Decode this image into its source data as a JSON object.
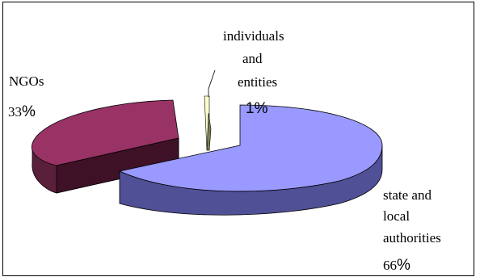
{
  "chart_data": {
    "type": "pie",
    "style": "3d-exploded",
    "title": "",
    "legend": "none",
    "categories": [
      "state and local authorities",
      "NGOs",
      "individuals and entities"
    ],
    "values": [
      66,
      33,
      1
    ],
    "colors": {
      "state and local authorities": "#9999ff",
      "NGOs": "#993366",
      "individuals and entities": "#ffffcc"
    },
    "data_labels": [
      {
        "name_lines": [
          "state and",
          "local",
          "authorities"
        ],
        "pct_num": "66",
        "pct_sign": "%"
      },
      {
        "name_lines": [
          "NGOs"
        ],
        "pct_num": "33",
        "pct_sign": "%"
      },
      {
        "name_lines": [
          "individuals",
          "and",
          "entities"
        ],
        "pct_num": "",
        "pct_sign": "1%"
      }
    ]
  }
}
